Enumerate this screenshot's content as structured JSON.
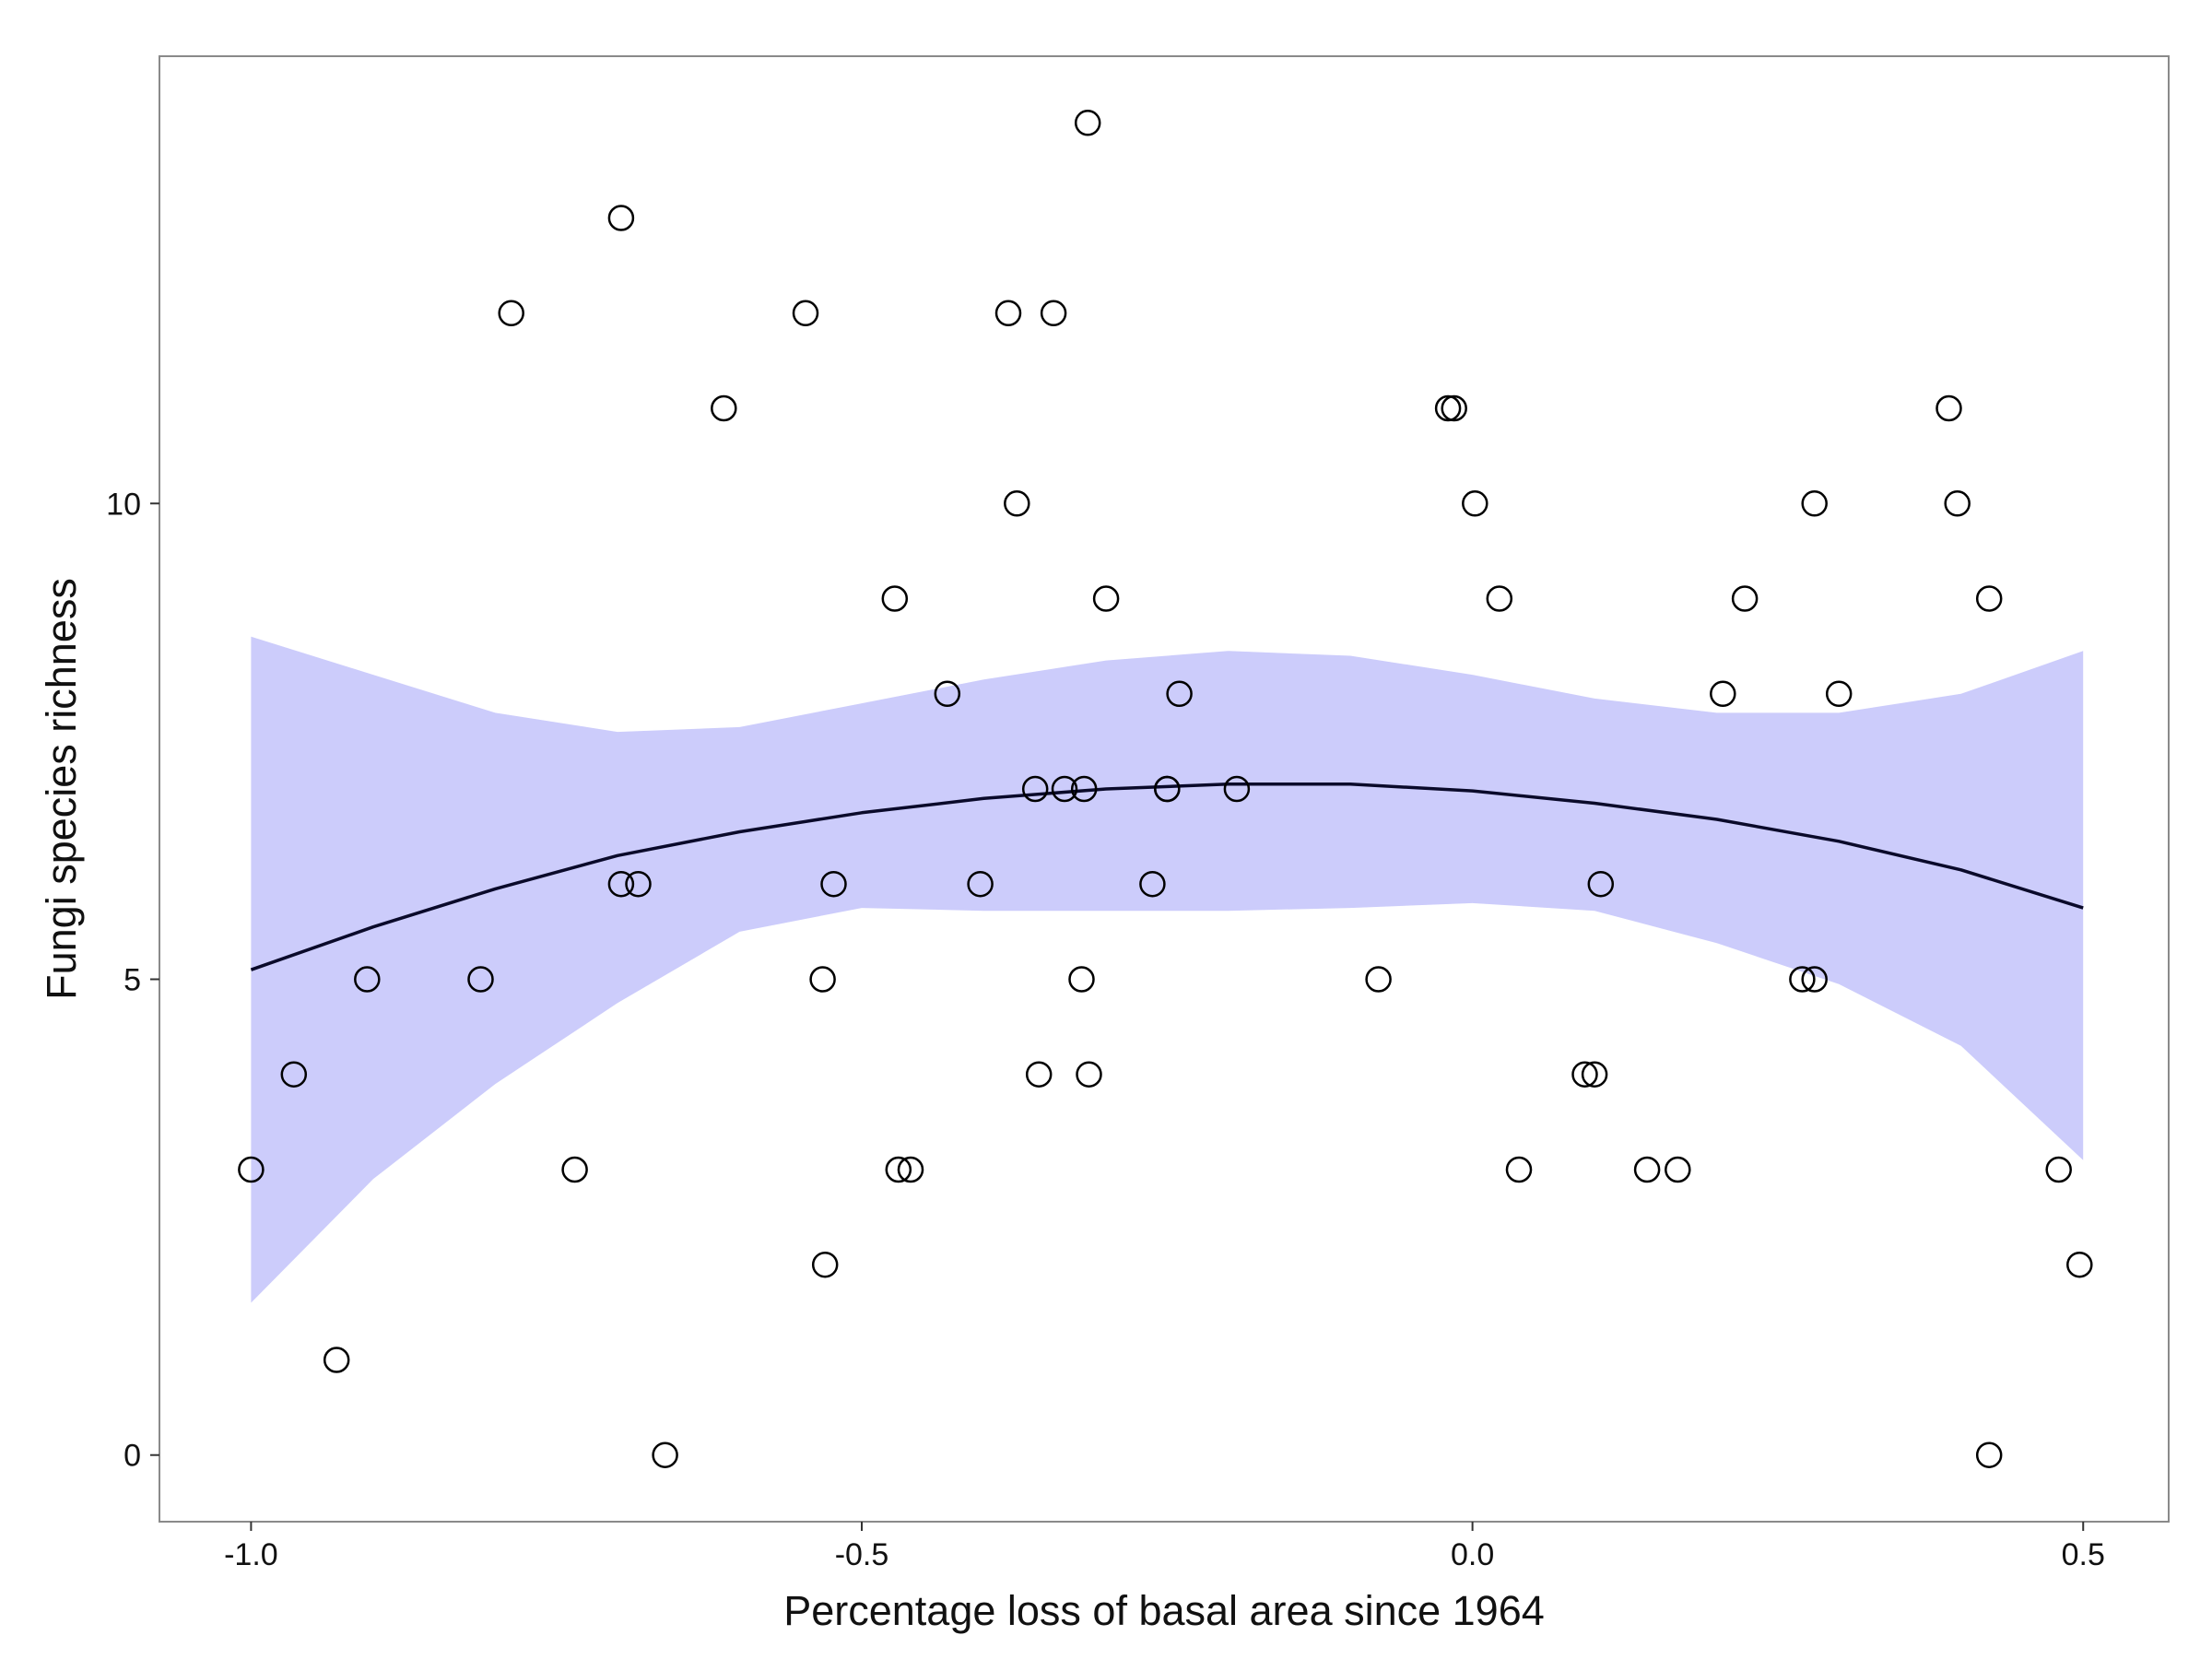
{
  "chart_data": {
    "type": "scatter",
    "title": "",
    "xlabel": "Percentage loss of basal area since 1964",
    "ylabel": "Fungi species richness",
    "xlim": [
      -1.075,
      0.57
    ],
    "ylim": [
      -0.7,
      14.7
    ],
    "x_ticks": [
      -1.0,
      -0.5,
      0.0,
      0.5
    ],
    "x_tick_labels": [
      "-1.0",
      "-0.5",
      "0.0",
      "0.5"
    ],
    "y_ticks": [
      0,
      5,
      10
    ],
    "y_tick_labels": [
      "0",
      "5",
      "10"
    ],
    "grid": false,
    "legend": "none",
    "colors": {
      "band": "#ccccfb",
      "line": "#0a0a2a",
      "points": "#000000",
      "frame": "#8a8a8a"
    },
    "points": [
      {
        "x": -1.0,
        "y": 3
      },
      {
        "x": -0.965,
        "y": 4
      },
      {
        "x": -0.93,
        "y": 1
      },
      {
        "x": -0.905,
        "y": 5
      },
      {
        "x": -0.812,
        "y": 5
      },
      {
        "x": -0.787,
        "y": 12
      },
      {
        "x": -0.735,
        "y": 3
      },
      {
        "x": -0.697,
        "y": 13
      },
      {
        "x": -0.697,
        "y": 6
      },
      {
        "x": -0.683,
        "y": 6
      },
      {
        "x": -0.661,
        "y": 0
      },
      {
        "x": -0.613,
        "y": 11
      },
      {
        "x": -0.546,
        "y": 12
      },
      {
        "x": -0.532,
        "y": 5
      },
      {
        "x": -0.53,
        "y": 2
      },
      {
        "x": -0.523,
        "y": 6
      },
      {
        "x": -0.473,
        "y": 9
      },
      {
        "x": -0.47,
        "y": 3
      },
      {
        "x": -0.46,
        "y": 3
      },
      {
        "x": -0.43,
        "y": 8
      },
      {
        "x": -0.403,
        "y": 6
      },
      {
        "x": -0.38,
        "y": 12
      },
      {
        "x": -0.373,
        "y": 10
      },
      {
        "x": -0.358,
        "y": 7
      },
      {
        "x": -0.355,
        "y": 4
      },
      {
        "x": -0.343,
        "y": 12
      },
      {
        "x": -0.334,
        "y": 7
      },
      {
        "x": -0.318,
        "y": 7
      },
      {
        "x": -0.32,
        "y": 5
      },
      {
        "x": -0.315,
        "y": 14
      },
      {
        "x": -0.314,
        "y": 4
      },
      {
        "x": -0.3,
        "y": 9
      },
      {
        "x": -0.262,
        "y": 6
      },
      {
        "x": -0.25,
        "y": 7
      },
      {
        "x": -0.25,
        "y": 7
      },
      {
        "x": -0.24,
        "y": 8
      },
      {
        "x": -0.193,
        "y": 7
      },
      {
        "x": -0.077,
        "y": 5
      },
      {
        "x": -0.02,
        "y": 11
      },
      {
        "x": -0.015,
        "y": 11
      },
      {
        "x": 0.002,
        "y": 10
      },
      {
        "x": 0.022,
        "y": 9
      },
      {
        "x": 0.038,
        "y": 3
      },
      {
        "x": 0.092,
        "y": 4
      },
      {
        "x": 0.1,
        "y": 4
      },
      {
        "x": 0.105,
        "y": 6
      },
      {
        "x": 0.143,
        "y": 3
      },
      {
        "x": 0.168,
        "y": 3
      },
      {
        "x": 0.205,
        "y": 8
      },
      {
        "x": 0.223,
        "y": 9
      },
      {
        "x": 0.27,
        "y": 5
      },
      {
        "x": 0.28,
        "y": 5
      },
      {
        "x": 0.28,
        "y": 10
      },
      {
        "x": 0.3,
        "y": 8
      },
      {
        "x": 0.39,
        "y": 11
      },
      {
        "x": 0.397,
        "y": 10
      },
      {
        "x": 0.423,
        "y": 9
      },
      {
        "x": 0.423,
        "y": 0
      },
      {
        "x": 0.48,
        "y": 3
      },
      {
        "x": 0.497,
        "y": 2
      }
    ],
    "smooth": {
      "x": [
        -1.0,
        -0.9,
        -0.8,
        -0.7,
        -0.6,
        -0.5,
        -0.4,
        -0.3,
        -0.2,
        -0.1,
        0.0,
        0.1,
        0.2,
        0.3,
        0.4,
        0.5
      ],
      "y": [
        5.1,
        5.55,
        5.95,
        6.3,
        6.55,
        6.75,
        6.9,
        7.0,
        7.05,
        7.05,
        6.98,
        6.85,
        6.68,
        6.45,
        6.15,
        5.75
      ],
      "lower": [
        1.6,
        2.9,
        3.9,
        4.75,
        5.5,
        5.75,
        5.72,
        5.72,
        5.72,
        5.75,
        5.8,
        5.72,
        5.38,
        4.95,
        4.3,
        3.1
      ],
      "upper": [
        8.6,
        8.2,
        7.8,
        7.6,
        7.65,
        7.9,
        8.15,
        8.35,
        8.45,
        8.4,
        8.2,
        7.95,
        7.8,
        7.8,
        8.0,
        8.45
      ]
    }
  }
}
